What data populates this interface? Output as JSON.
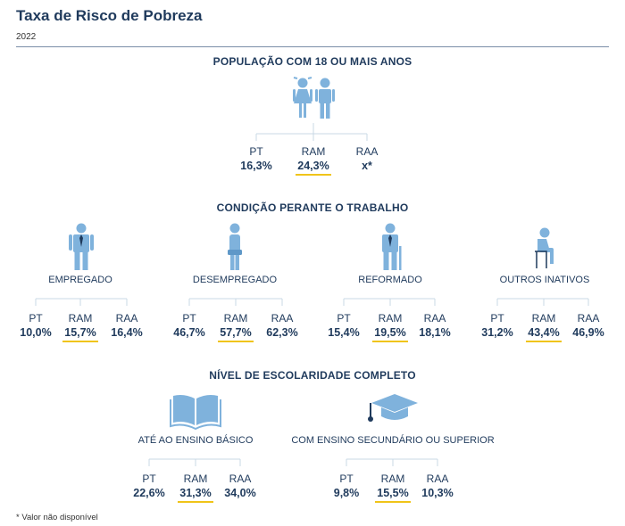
{
  "title": "Taxa de Risco de Pobreza",
  "year": "2022",
  "note": "* Valor não disponível",
  "colors": {
    "icon": "#7fb2dc",
    "text": "#1f3a5c",
    "connector": "#c8d8e6",
    "highlight": "#f0c419"
  },
  "sections": {
    "population": {
      "heading": "POPULAÇÃO COM 18 OU MAIS ANOS"
    },
    "work": {
      "heading": "CONDIÇÃO PERANTE O TRABALHO"
    },
    "education": {
      "heading": "NÍVEL DE ESCOLARIDADE COMPLETO"
    }
  },
  "chart_data": {
    "type": "table",
    "title": "Taxa de Risco de Pobreza",
    "year": "2022",
    "regions": [
      "PT",
      "RAM",
      "RAA"
    ],
    "groups": [
      {
        "section": "POPULAÇÃO COM 18 OU MAIS ANOS",
        "label": "",
        "icon": "people-icon",
        "values": [
          "16,3%",
          "24,3%",
          "x*"
        ]
      },
      {
        "section": "CONDIÇÃO PERANTE O TRABALHO",
        "label": "EMPREGADO",
        "icon": "employed-icon",
        "values": [
          "10,0%",
          "15,7%",
          "16,4%"
        ]
      },
      {
        "section": "CONDIÇÃO PERANTE O TRABALHO",
        "label": "DESEMPREGADO",
        "icon": "unemployed-icon",
        "values": [
          "46,7%",
          "57,7%",
          "62,3%"
        ]
      },
      {
        "section": "CONDIÇÃO PERANTE O TRABALHO",
        "label": "REFORMADO",
        "icon": "retired-icon",
        "values": [
          "15,4%",
          "19,5%",
          "18,1%"
        ]
      },
      {
        "section": "CONDIÇÃO PERANTE O TRABALHO",
        "label": "OUTROS INATIVOS",
        "icon": "other-inactive-icon",
        "values": [
          "31,2%",
          "43,4%",
          "46,9%"
        ]
      },
      {
        "section": "NÍVEL DE ESCOLARIDADE COMPLETO",
        "label": "ATÉ AO ENSINO BÁSICO",
        "icon": "book-icon",
        "values": [
          "22,6%",
          "31,3%",
          "34,0%"
        ]
      },
      {
        "section": "NÍVEL DE ESCOLARIDADE COMPLETO",
        "label": "COM ENSINO SECUNDÁRIO OU SUPERIOR",
        "icon": "graduation-cap-icon",
        "values": [
          "9,8%",
          "15,5%",
          "10,3%"
        ]
      }
    ],
    "highlight_region": "RAM"
  }
}
